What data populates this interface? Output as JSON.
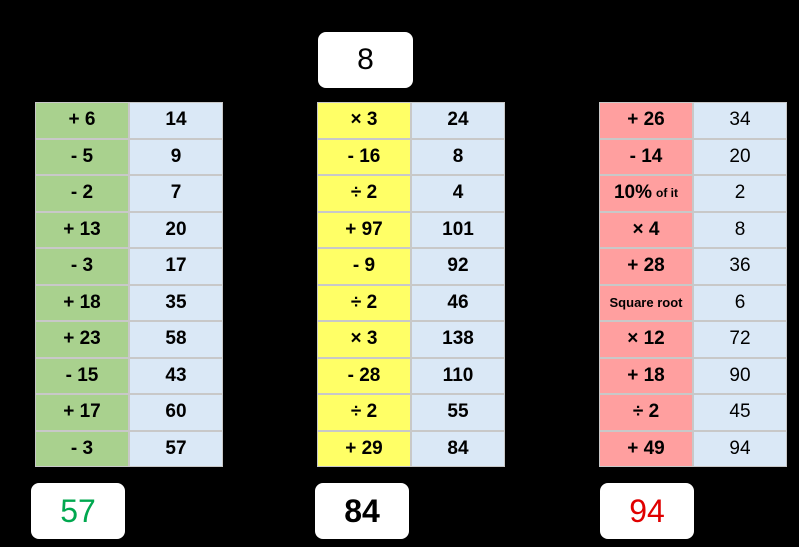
{
  "start": "8",
  "tables": [
    {
      "rows": [
        [
          "+ 6",
          "14"
        ],
        [
          "-  5",
          "9"
        ],
        [
          "- 2",
          "7"
        ],
        [
          "+ 13",
          "20"
        ],
        [
          "- 3",
          "17"
        ],
        [
          "+ 18",
          "35"
        ],
        [
          "+ 23",
          "58"
        ],
        [
          "- 15",
          "43"
        ],
        [
          "+ 17",
          "60"
        ],
        [
          "- 3",
          "57"
        ]
      ],
      "answer": "57"
    },
    {
      "rows": [
        [
          "× 3",
          "24"
        ],
        [
          "- 16",
          "8"
        ],
        [
          "÷ 2",
          "4"
        ],
        [
          "+ 97",
          "101"
        ],
        [
          "- 9",
          "92"
        ],
        [
          "÷ 2",
          "46"
        ],
        [
          "× 3",
          "138"
        ],
        [
          "- 28",
          "110"
        ],
        [
          "÷ 2",
          "55"
        ],
        [
          "+ 29",
          "84"
        ]
      ],
      "answer": "84"
    },
    {
      "rows": [
        [
          "+ 26",
          "34"
        ],
        [
          "- 14",
          "20"
        ],
        [
          {
            "text": "10%",
            "note": "of it"
          },
          "2"
        ],
        [
          "× 4",
          "8"
        ],
        [
          "+ 28",
          "36"
        ],
        [
          "Square root",
          "6"
        ],
        [
          "× 12",
          "72"
        ],
        [
          "+ 18",
          "90"
        ],
        [
          "÷ 2",
          "45"
        ],
        [
          "+ 49",
          "94"
        ]
      ],
      "answer": "94"
    }
  ]
}
